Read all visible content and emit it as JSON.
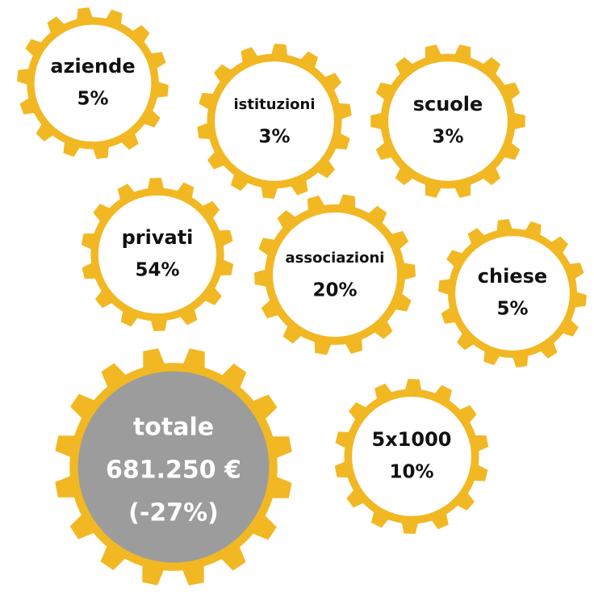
{
  "nodes": [
    {
      "label": "aziende",
      "value": "5%"
    },
    {
      "label": "istituzioni",
      "value": "3%"
    },
    {
      "label": "scuole",
      "value": "3%"
    },
    {
      "label": "privati",
      "value": "54%"
    },
    {
      "label": "associazioni",
      "value": "20%"
    },
    {
      "label": "chiese",
      "value": "5%"
    },
    {
      "label": "5x1000",
      "value": "10%"
    }
  ],
  "total": {
    "label": "totale",
    "amount": "681.250 €",
    "change": "(-27%)"
  }
}
